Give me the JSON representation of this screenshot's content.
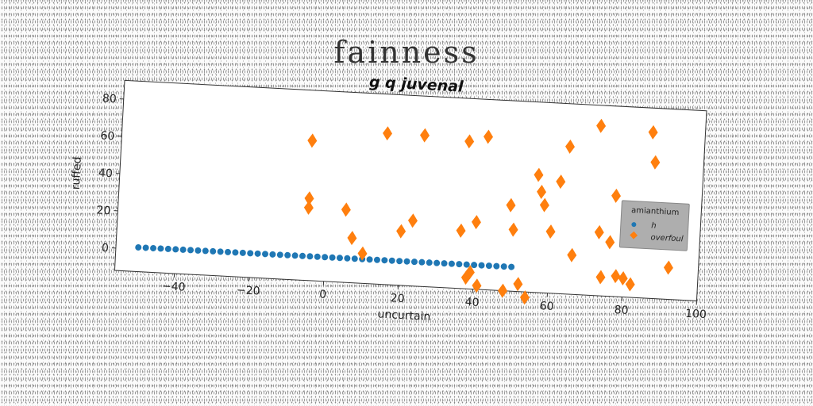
{
  "figure": {
    "title": "fainness"
  },
  "chart_data": {
    "type": "scatter",
    "title": "g q juvenal",
    "xlabel": "uncurtain",
    "ylabel": "ruffed",
    "xlim": [
      -56,
      100
    ],
    "ylim": [
      -12,
      90
    ],
    "xticks": [
      -40,
      -20,
      0,
      20,
      40,
      60,
      80,
      100
    ],
    "yticks": [
      0,
      20,
      40,
      60,
      80
    ],
    "grid": false,
    "legend": {
      "title": "amianthium",
      "position": "center-right"
    },
    "series": [
      {
        "name": "h",
        "marker": "circle",
        "color": "#1f77b4",
        "x": [
          -50,
          -48,
          -46,
          -44,
          -42,
          -40,
          -38,
          -36,
          -34,
          -32,
          -30,
          -28,
          -26,
          -24,
          -22,
          -20,
          -18,
          -16,
          -14,
          -12,
          -10,
          -8,
          -6,
          -4,
          -2,
          0,
          2,
          4,
          6,
          8,
          10,
          12,
          14,
          16,
          18,
          20,
          22,
          24,
          26,
          28,
          30,
          32,
          34,
          36,
          38,
          40,
          42,
          44,
          46,
          48,
          50
        ],
        "y": [
          1,
          1,
          1,
          1,
          1,
          1,
          1,
          1,
          1,
          1,
          1,
          1,
          1,
          1,
          1,
          1,
          1,
          1,
          1,
          1,
          1,
          1,
          1,
          1,
          1,
          1,
          1,
          1,
          1,
          1,
          1,
          1,
          1,
          1,
          1,
          1,
          1,
          1,
          1,
          1,
          1,
          1,
          1,
          1,
          1,
          1,
          1,
          1,
          1,
          1,
          1
        ]
      },
      {
        "name": "overfoul",
        "marker": "diamond",
        "color": "#ff7f0e",
        "x": [
          -5,
          -5,
          -5,
          5,
          7,
          10,
          15,
          20,
          23,
          25,
          36,
          37,
          38,
          39,
          40,
          41,
          42,
          48,
          49,
          50,
          52,
          54,
          56,
          57,
          58,
          60,
          62,
          64,
          66,
          72,
          73,
          74,
          76,
          77,
          78,
          80,
          82,
          86,
          87,
          92
        ],
        "y": [
          63,
          32,
          27,
          27,
          12,
          4,
          69,
          17,
          23,
          69,
          19,
          67,
          -6,
          -3,
          24,
          -10,
          70,
          -12,
          34,
          21,
          -8,
          -15,
          51,
          42,
          35,
          21,
          48,
          67,
          9,
          79,
          22,
          -2,
          17,
          42,
          -1,
          -2,
          -5,
          77,
          61,
          5
        ]
      }
    ]
  }
}
